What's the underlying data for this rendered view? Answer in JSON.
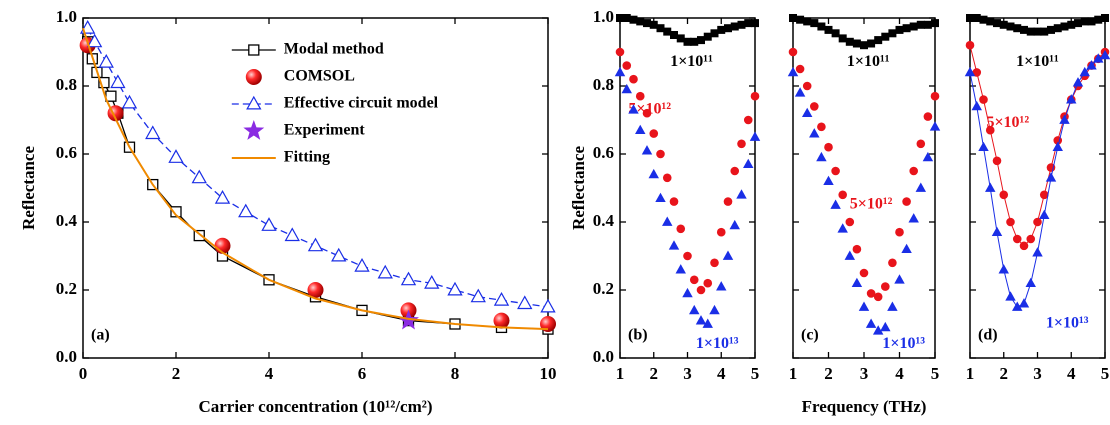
{
  "chart_data": [
    {
      "type": "line",
      "xlabel": "Carrier concentration (10¹²/cm²)",
      "ylabel": "Reflectance",
      "annotation": "(a)",
      "xlim": [
        0,
        10
      ],
      "ylim": [
        0,
        1
      ],
      "xticks": [
        0,
        2,
        4,
        6,
        8,
        10
      ],
      "yticks": [
        {
          "value": 0,
          "label": "0.0"
        },
        0.2,
        0.4,
        0.6,
        0.8,
        {
          "value": 1,
          "label": "1.0"
        }
      ],
      "legend": "upper right",
      "series": [
        {
          "name": "Modal method",
          "color": "#000000",
          "marker": "open-square",
          "line": "solid",
          "x": [
            0.1,
            0.2,
            0.3,
            0.45,
            0.6,
            0.75,
            1,
            1.5,
            2,
            2.5,
            3,
            4,
            5,
            6,
            7,
            8,
            9,
            10
          ],
          "values": [
            0.93,
            0.88,
            0.84,
            0.81,
            0.77,
            0.72,
            0.62,
            0.51,
            0.43,
            0.36,
            0.3,
            0.23,
            0.18,
            0.14,
            0.11,
            0.1,
            0.09,
            0.085
          ]
        },
        {
          "name": "COMSOL",
          "color": "#e8141b",
          "marker": "sphere",
          "line": "none",
          "x": [
            0.1,
            0.7,
            3,
            5,
            7,
            9,
            10
          ],
          "values": [
            0.92,
            0.72,
            0.33,
            0.2,
            0.14,
            0.11,
            0.1
          ]
        },
        {
          "name": "Effective circuit model",
          "color": "#1a2ee6",
          "marker": "open-triangle",
          "line": "dashed",
          "x": [
            0.1,
            0.25,
            0.5,
            0.75,
            1,
            1.5,
            2,
            2.5,
            3,
            3.5,
            4,
            4.5,
            5,
            5.5,
            6,
            6.5,
            7,
            7.5,
            8,
            8.5,
            9,
            9.5,
            10
          ],
          "values": [
            0.97,
            0.93,
            0.87,
            0.81,
            0.75,
            0.66,
            0.59,
            0.53,
            0.47,
            0.43,
            0.39,
            0.36,
            0.33,
            0.3,
            0.27,
            0.25,
            0.23,
            0.22,
            0.2,
            0.18,
            0.17,
            0.16,
            0.15
          ]
        },
        {
          "name": "Experiment",
          "color": "#8a2be2",
          "marker": "star",
          "line": "none",
          "x": [
            7
          ],
          "values": [
            0.11
          ]
        },
        {
          "name": "Fitting",
          "color": "#f08a00",
          "marker": "none",
          "line": "solid",
          "x": [
            0,
            0.5,
            1,
            1.5,
            2,
            3,
            4,
            5,
            6,
            7,
            8,
            9,
            10
          ],
          "values": [
            0.97,
            0.76,
            0.62,
            0.51,
            0.42,
            0.31,
            0.23,
            0.175,
            0.14,
            0.115,
            0.1,
            0.09,
            0.085
          ]
        }
      ]
    },
    {
      "type": "scatter",
      "ylabel": "Reflectance",
      "annotation": "(b)",
      "xlim": [
        1,
        5
      ],
      "ylim": [
        0,
        1
      ],
      "xticks": [
        1,
        2,
        3,
        4,
        5
      ],
      "yticks": [
        {
          "value": 0,
          "label": "0.0"
        },
        0.2,
        0.4,
        0.6,
        0.8,
        {
          "value": 1,
          "label": "1.0"
        }
      ],
      "x": [
        1,
        1.2,
        1.4,
        1.6,
        1.8,
        2,
        2.2,
        2.4,
        2.6,
        2.8,
        3,
        3.2,
        3.4,
        3.6,
        3.8,
        4,
        4.2,
        4.4,
        4.6,
        4.8,
        5
      ],
      "series": [
        {
          "name": "1×10¹¹",
          "color": "#000000",
          "marker": "square",
          "values": [
            1,
            1,
            0.995,
            0.99,
            0.985,
            0.98,
            0.97,
            0.96,
            0.95,
            0.94,
            0.93,
            0.93,
            0.935,
            0.945,
            0.955,
            0.965,
            0.97,
            0.975,
            0.98,
            0.985,
            0.985
          ]
        },
        {
          "name": "5×10¹²",
          "color": "#e8141b",
          "marker": "circle",
          "values": [
            0.9,
            0.86,
            0.82,
            0.77,
            0.72,
            0.66,
            0.6,
            0.53,
            0.46,
            0.38,
            0.3,
            0.23,
            0.2,
            0.22,
            0.28,
            0.37,
            0.46,
            0.55,
            0.63,
            0.7,
            0.77
          ]
        },
        {
          "name": "1×10¹³",
          "color": "#1a2ee6",
          "marker": "triangle",
          "values": [
            0.84,
            0.79,
            0.73,
            0.67,
            0.61,
            0.54,
            0.47,
            0.4,
            0.33,
            0.26,
            0.19,
            0.14,
            0.11,
            0.1,
            0.14,
            0.21,
            0.3,
            0.39,
            0.48,
            0.57,
            0.65
          ]
        }
      ]
    },
    {
      "type": "scatter",
      "xlabel": "Frequency (THz)",
      "annotation": "(c)",
      "xlim": [
        1,
        5
      ],
      "ylim": [
        0,
        1
      ],
      "xticks": [
        1,
        2,
        3,
        4,
        5
      ],
      "yticks": [
        0,
        0.2,
        0.4,
        0.6,
        0.8,
        1
      ],
      "ytick_labels": false,
      "x": [
        1,
        1.2,
        1.4,
        1.6,
        1.8,
        2,
        2.2,
        2.4,
        2.6,
        2.8,
        3,
        3.2,
        3.4,
        3.6,
        3.8,
        4,
        4.2,
        4.4,
        4.6,
        4.8,
        5
      ],
      "series": [
        {
          "name": "1×10¹¹",
          "color": "#000000",
          "marker": "square",
          "values": [
            1,
            0.995,
            0.99,
            0.985,
            0.975,
            0.965,
            0.955,
            0.94,
            0.93,
            0.925,
            0.92,
            0.925,
            0.935,
            0.945,
            0.955,
            0.965,
            0.97,
            0.975,
            0.98,
            0.98,
            0.985
          ]
        },
        {
          "name": "5×10¹²",
          "color": "#e8141b",
          "marker": "circle",
          "values": [
            0.9,
            0.85,
            0.8,
            0.74,
            0.68,
            0.62,
            0.55,
            0.48,
            0.4,
            0.32,
            0.25,
            0.19,
            0.18,
            0.21,
            0.28,
            0.37,
            0.46,
            0.55,
            0.63,
            0.71,
            0.77
          ]
        },
        {
          "name": "1×10¹³",
          "color": "#1a2ee6",
          "marker": "triangle",
          "values": [
            0.84,
            0.78,
            0.72,
            0.66,
            0.59,
            0.52,
            0.45,
            0.38,
            0.3,
            0.22,
            0.15,
            0.1,
            0.08,
            0.09,
            0.15,
            0.23,
            0.32,
            0.41,
            0.5,
            0.59,
            0.68
          ]
        }
      ]
    },
    {
      "type": "scatter",
      "annotation": "(d)",
      "line": true,
      "xlim": [
        1,
        5
      ],
      "ylim": [
        0,
        1
      ],
      "xticks": [
        1,
        2,
        3,
        4,
        5
      ],
      "yticks": [
        0,
        0.2,
        0.4,
        0.6,
        0.8,
        1
      ],
      "ytick_labels": false,
      "x": [
        1,
        1.2,
        1.4,
        1.6,
        1.8,
        2,
        2.2,
        2.4,
        2.6,
        2.8,
        3,
        3.2,
        3.4,
        3.6,
        3.8,
        4,
        4.2,
        4.4,
        4.6,
        4.8,
        5
      ],
      "series": [
        {
          "name": "1×10¹¹",
          "color": "#000000",
          "marker": "square",
          "values": [
            1,
            1,
            0.995,
            0.99,
            0.985,
            0.98,
            0.975,
            0.97,
            0.965,
            0.96,
            0.96,
            0.96,
            0.965,
            0.97,
            0.975,
            0.98,
            0.985,
            0.99,
            0.99,
            0.995,
            1
          ]
        },
        {
          "name": "5×10¹²",
          "color": "#e8141b",
          "marker": "circle",
          "values": [
            0.92,
            0.84,
            0.76,
            0.67,
            0.58,
            0.48,
            0.4,
            0.35,
            0.33,
            0.35,
            0.4,
            0.48,
            0.56,
            0.64,
            0.71,
            0.76,
            0.8,
            0.83,
            0.86,
            0.88,
            0.9
          ]
        },
        {
          "name": "1×10¹³",
          "color": "#1a2ee6",
          "marker": "triangle",
          "values": [
            0.84,
            0.74,
            0.62,
            0.5,
            0.37,
            0.26,
            0.18,
            0.15,
            0.16,
            0.22,
            0.31,
            0.42,
            0.53,
            0.62,
            0.7,
            0.76,
            0.81,
            0.84,
            0.86,
            0.88,
            0.89
          ]
        }
      ]
    }
  ]
}
